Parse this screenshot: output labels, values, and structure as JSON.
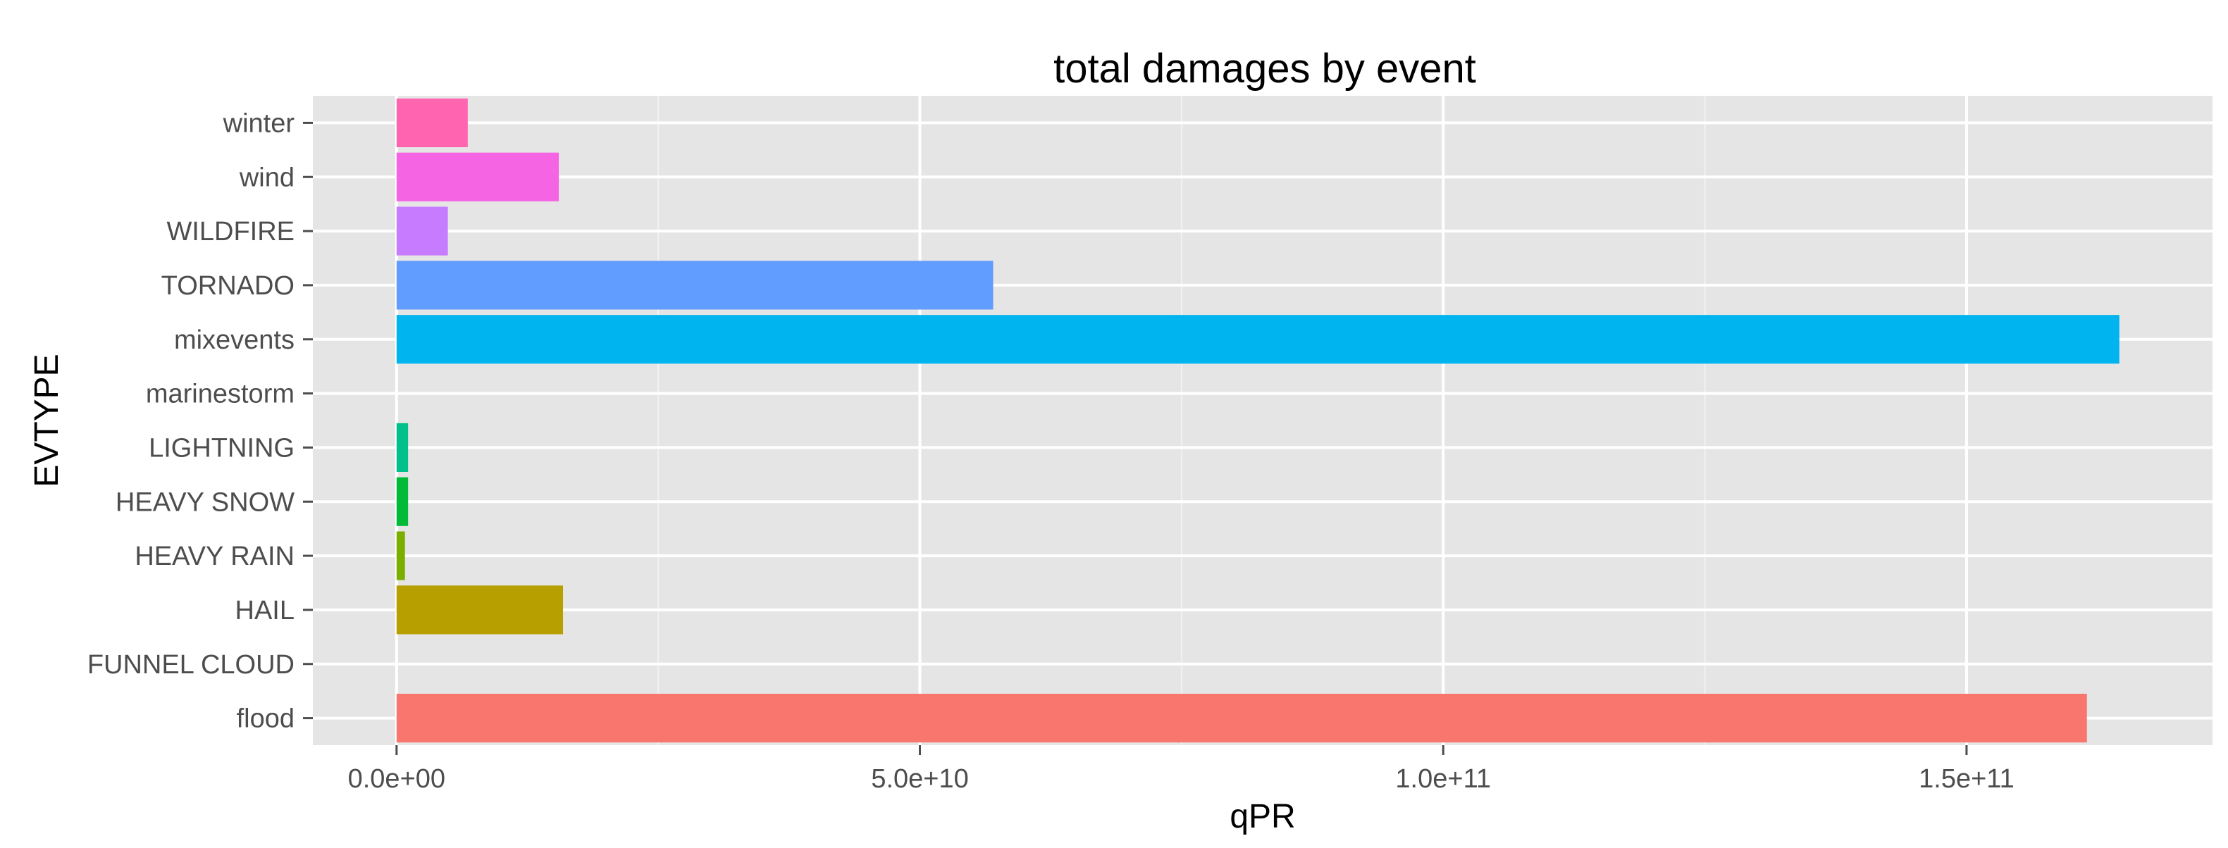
{
  "chart_data": {
    "type": "bar",
    "orientation": "horizontal",
    "title": "total damages by event",
    "xlabel": "qPR",
    "ylabel": "EVTYPE",
    "xlim": [
      -8000000000.0,
      173500000000.0
    ],
    "xticks": [
      0,
      50000000000.0,
      100000000000.0,
      150000000000.0
    ],
    "xtick_labels": [
      "0.0e+00",
      "5.0e+10",
      "1.0e+11",
      "1.5e+11"
    ],
    "grid": true,
    "legend": "none",
    "categories": [
      "flood",
      "FUNNEL CLOUD",
      "HAIL",
      "HEAVY RAIN",
      "HEAVY SNOW",
      "LIGHTNING",
      "marinestorm",
      "mixevents",
      "TORNADO",
      "WILDFIRE",
      "wind",
      "winter"
    ],
    "values": [
      161500000000,
      0,
      15900000000,
      800000000,
      1100000000,
      1100000000,
      0,
      164600000000,
      57000000000,
      4900000000,
      15500000000,
      6800000000
    ],
    "colors": [
      "#F8766D",
      "#DB8E00",
      "#B79F00",
      "#7CAE00",
      "#00BA38",
      "#00C08B",
      "#00BCD8",
      "#00B4EF",
      "#619CFF",
      "#C77CFF",
      "#F564E3",
      "#FF64B0"
    ]
  }
}
